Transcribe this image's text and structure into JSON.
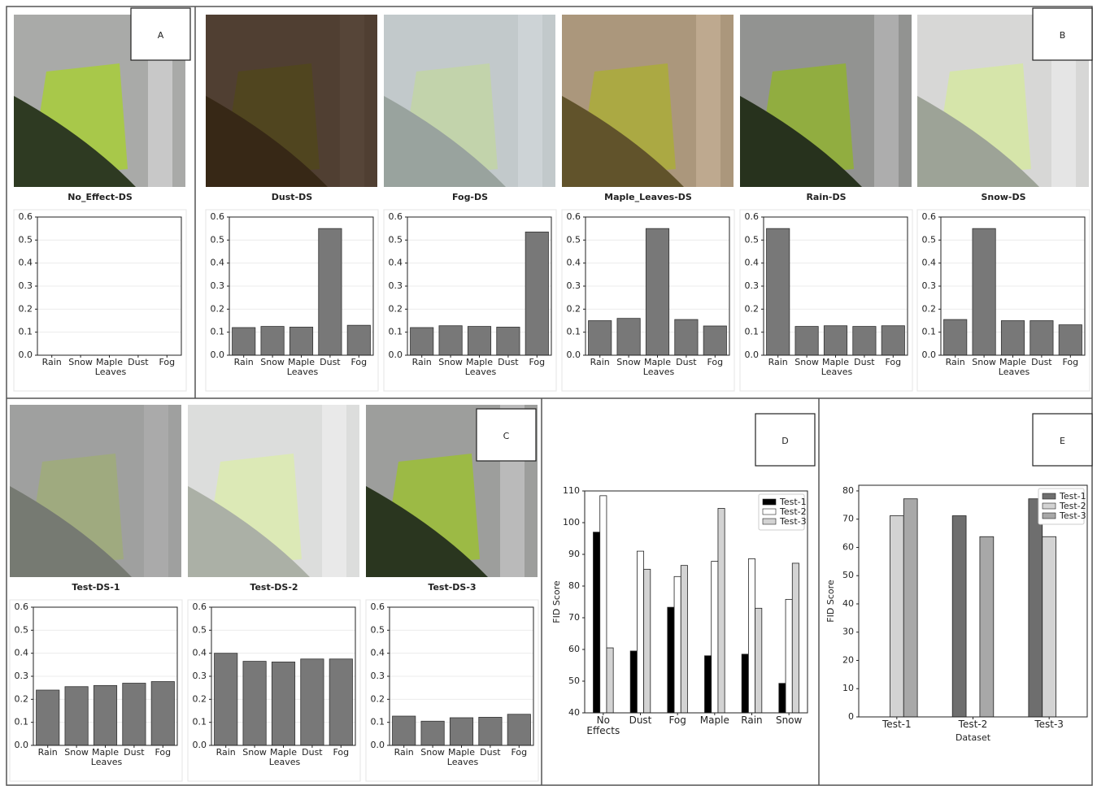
{
  "panel_labels": [
    "A",
    "B",
    "C",
    "D",
    "E"
  ],
  "chart_data": [
    {
      "type": "bar",
      "title": "No_Effect-DS",
      "categories": [
        "Rain",
        "Snow",
        "Maple Leaves",
        "Dust",
        "Fog"
      ],
      "color": "#787878",
      "ylim": [
        0,
        0.6
      ],
      "yticks": [
        {
          "value": 0,
          "label": "0.0"
        },
        0.1,
        0.2,
        0.3,
        0.4,
        0.5,
        0.6
      ],
      "grid": true
    },
    {
      "type": "bar",
      "title": "Dust-DS",
      "categories": [
        "Rain",
        "Snow",
        "Maple Leaves",
        "Dust",
        "Fog"
      ],
      "values": [
        0.12,
        0.125,
        0.122,
        0.55,
        0.13
      ],
      "color": "#787878",
      "ylim": [
        0,
        0.6
      ],
      "yticks": [
        {
          "value": 0,
          "label": "0.0"
        },
        0.1,
        0.2,
        0.3,
        0.4,
        0.5,
        0.6
      ],
      "grid": true
    },
    {
      "type": "bar",
      "title": "Fog-DS",
      "categories": [
        "Rain",
        "Snow",
        "Maple Leaves",
        "Dust",
        "Fog"
      ],
      "values": [
        0.12,
        0.128,
        0.125,
        0.122,
        0.535
      ],
      "color": "#787878",
      "ylim": [
        0,
        0.6
      ],
      "yticks": [
        {
          "value": 0,
          "label": "0.0"
        },
        0.1,
        0.2,
        0.3,
        0.4,
        0.5,
        0.6
      ],
      "grid": true
    },
    {
      "type": "bar",
      "title": "Maple_Leaves-DS",
      "categories": [
        "Rain",
        "Snow",
        "Maple Leaves",
        "Dust",
        "Fog"
      ],
      "values": [
        0.15,
        0.16,
        0.55,
        0.155,
        0.127
      ],
      "color": "#787878",
      "ylim": [
        0,
        0.6
      ],
      "yticks": [
        {
          "value": 0,
          "label": "0.0"
        },
        0.1,
        0.2,
        0.3,
        0.4,
        0.5,
        0.6
      ],
      "grid": true
    },
    {
      "type": "bar",
      "title": "Rain-DS",
      "categories": [
        "Rain",
        "Snow",
        "Maple Leaves",
        "Dust",
        "Fog"
      ],
      "values": [
        0.55,
        0.125,
        0.128,
        0.125,
        0.128
      ],
      "color": "#787878",
      "ylim": [
        0,
        0.6
      ],
      "yticks": [
        {
          "value": 0,
          "label": "0.0"
        },
        0.1,
        0.2,
        0.3,
        0.4,
        0.5,
        0.6
      ],
      "grid": true
    },
    {
      "type": "bar",
      "title": "Snow-DS",
      "categories": [
        "Rain",
        "Snow",
        "Maple Leaves",
        "Dust",
        "Fog"
      ],
      "values": [
        0.155,
        0.55,
        0.15,
        0.15,
        0.132
      ],
      "color": "#787878",
      "ylim": [
        0,
        0.6
      ],
      "yticks": [
        {
          "value": 0,
          "label": "0.0"
        },
        0.1,
        0.2,
        0.3,
        0.4,
        0.5,
        0.6
      ],
      "grid": true
    },
    {
      "type": "bar",
      "title": "Test-DS-1",
      "categories": [
        "Rain",
        "Snow",
        "Maple Leaves",
        "Dust",
        "Fog"
      ],
      "values": [
        0.24,
        0.255,
        0.26,
        0.27,
        0.277
      ],
      "color": "#787878",
      "ylim": [
        0,
        0.6
      ],
      "yticks": [
        {
          "value": 0,
          "label": "0.0"
        },
        0.1,
        0.2,
        0.3,
        0.4,
        0.5,
        0.6
      ],
      "grid": true
    },
    {
      "type": "bar",
      "title": "Test-DS-2",
      "categories": [
        "Rain",
        "Snow",
        "Maple Leaves",
        "Dust",
        "Fog"
      ],
      "values": [
        0.4,
        0.365,
        0.362,
        0.375,
        0.375
      ],
      "color": "#787878",
      "ylim": [
        0,
        0.6
      ],
      "yticks": [
        {
          "value": 0,
          "label": "0.0"
        },
        0.1,
        0.2,
        0.3,
        0.4,
        0.5,
        0.6
      ],
      "grid": true
    },
    {
      "type": "bar",
      "title": "Test-DS-3",
      "categories": [
        "Rain",
        "Snow",
        "Maple Leaves",
        "Dust",
        "Fog"
      ],
      "values": [
        0.127,
        0.105,
        0.12,
        0.122,
        0.135
      ],
      "color": "#787878",
      "ylim": [
        0,
        0.6
      ],
      "yticks": [
        {
          "value": 0,
          "label": "0.0"
        },
        0.1,
        0.2,
        0.3,
        0.4,
        0.5,
        0.6
      ],
      "grid": true
    },
    {
      "type": "bar",
      "y_label": "FID Score",
      "categories": [
        "No Effects",
        "Dust",
        "Fog",
        "Maple",
        "Rain",
        "Snow"
      ],
      "series": [
        {
          "name": "Test-1",
          "color": "#000000",
          "values": [
            97,
            59.5,
            73.3,
            58,
            58.5,
            49.3
          ]
        },
        {
          "name": "Test-2",
          "color": "#ffffff",
          "values": [
            108.5,
            91,
            83,
            87.8,
            88.6,
            75.8
          ]
        },
        {
          "name": "Test-3",
          "color": "#d3d3d3",
          "values": [
            60.5,
            85.3,
            86.5,
            104.5,
            73,
            87.2
          ]
        }
      ],
      "ylim": [
        40,
        110
      ],
      "yticks": [
        40,
        50,
        60,
        70,
        80,
        90,
        100,
        110
      ],
      "grid": false,
      "legend": "upper right"
    },
    {
      "type": "bar",
      "x_label": "Dataset",
      "y_label": "FID Score",
      "categories": [
        "Test-1",
        "Test-2",
        "Test-3"
      ],
      "series": [
        {
          "name": "Test-1",
          "color": "#6e6e6e",
          "values": [
            0,
            71.2,
            77.2
          ]
        },
        {
          "name": "Test-2",
          "color": "#d3d3d3",
          "values": [
            71.2,
            0,
            63.8
          ]
        },
        {
          "name": "Test-3",
          "color": "#a8a8a8",
          "values": [
            77.2,
            63.8,
            0
          ]
        }
      ],
      "ylim": [
        0,
        82
      ],
      "yticks": [
        0,
        10,
        20,
        30,
        40,
        50,
        60,
        70,
        80
      ],
      "grid": false,
      "legend": "upper right"
    }
  ]
}
